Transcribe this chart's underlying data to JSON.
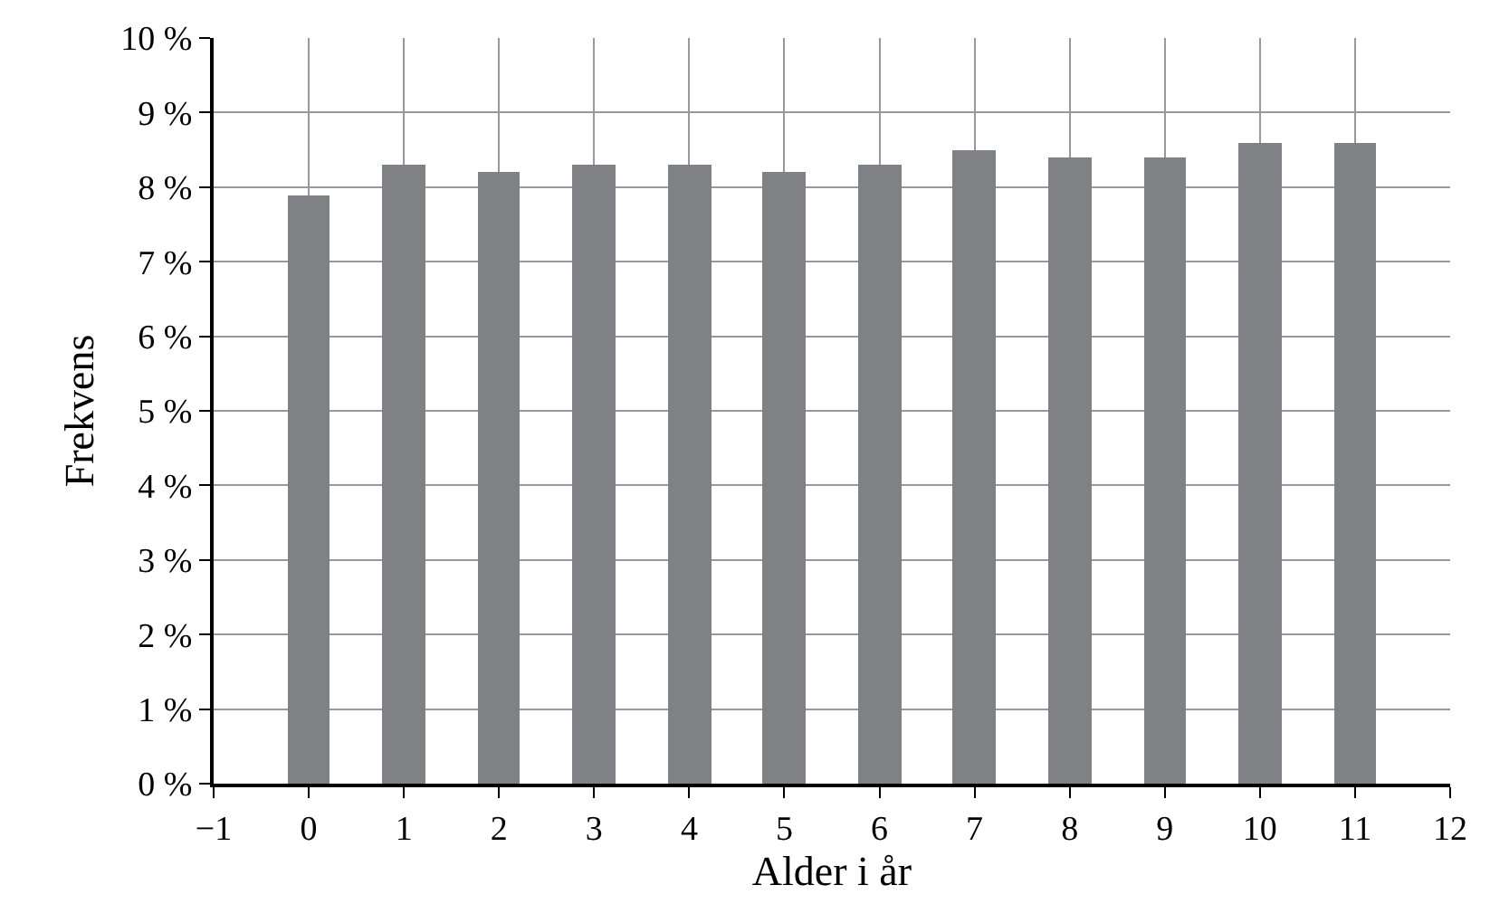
{
  "chart_data": {
    "type": "bar",
    "xlabel": "Alder i år",
    "ylabel": "Frekvens",
    "x": [
      0,
      1,
      2,
      3,
      4,
      5,
      6,
      7,
      8,
      9,
      10,
      11
    ],
    "values": [
      7.9,
      8.3,
      8.2,
      8.3,
      8.3,
      8.2,
      8.3,
      8.5,
      8.4,
      8.4,
      8.6,
      8.6
    ],
    "color": "#808185",
    "xlim": [
      -1,
      12
    ],
    "xticks": [
      {
        "value": -1,
        "label": "−1"
      },
      0,
      1,
      2,
      3,
      4,
      5,
      6,
      7,
      8,
      9,
      10,
      11,
      12
    ],
    "ylim": [
      0,
      10
    ],
    "yticks": [
      {
        "value": 0,
        "label": "0 %"
      },
      {
        "value": 1,
        "label": "1 %"
      },
      {
        "value": 2,
        "label": "2 %"
      },
      {
        "value": 3,
        "label": "3 %"
      },
      {
        "value": 4,
        "label": "4 %"
      },
      {
        "value": 5,
        "label": "5 %"
      },
      {
        "value": 6,
        "label": "6 %"
      },
      {
        "value": 7,
        "label": "7 %"
      },
      {
        "value": 8,
        "label": "8 %"
      },
      {
        "value": 9,
        "label": "9 %"
      },
      {
        "value": 10,
        "label": "10 %"
      }
    ],
    "grid": true
  }
}
